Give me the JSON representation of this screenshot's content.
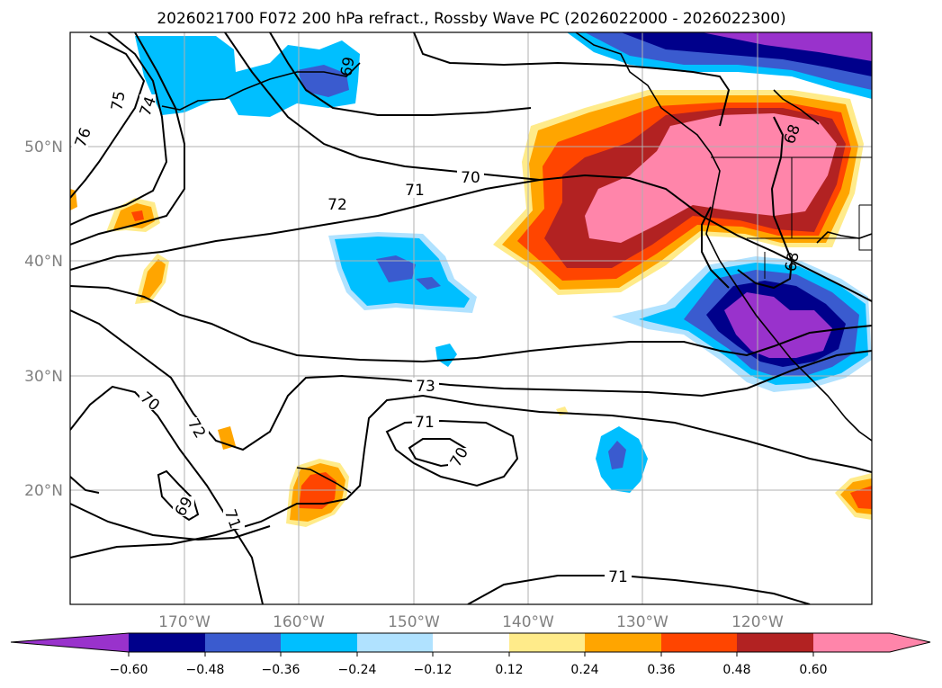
{
  "title": "2026021700 F072 200 hPa refract., Rossby Wave PC (2026022000 - 2026022300)",
  "map": {
    "lon_range": [
      180,
      110
    ],
    "lat_range": [
      10,
      60
    ],
    "lon_labels": [
      "170°W",
      "160°W",
      "150°W",
      "140°W",
      "130°W",
      "120°W"
    ],
    "lat_labels": [
      "50°N",
      "40°N",
      "30°N",
      "20°N"
    ],
    "grid": true
  },
  "colorbar": {
    "ticks": [
      "−0.60",
      "−0.48",
      "−0.36",
      "−0.24",
      "−0.12",
      "0.12",
      "0.24",
      "0.36",
      "0.48",
      "0.60"
    ],
    "colors": [
      "#9932cc",
      "#00008b",
      "#3a5bcf",
      "#00bfff",
      "#b0e2ff",
      "#ffffff",
      "#ffeb8a",
      "#ffa500",
      "#ff4500",
      "#b22222",
      "#ff85aa"
    ],
    "extend": "both"
  },
  "contour_labels": [
    "76",
    "75",
    "74",
    "69",
    "70",
    "71",
    "72",
    "73",
    "70",
    "71",
    "70",
    "72",
    "69",
    "71",
    "68",
    "68",
    "71"
  ]
}
